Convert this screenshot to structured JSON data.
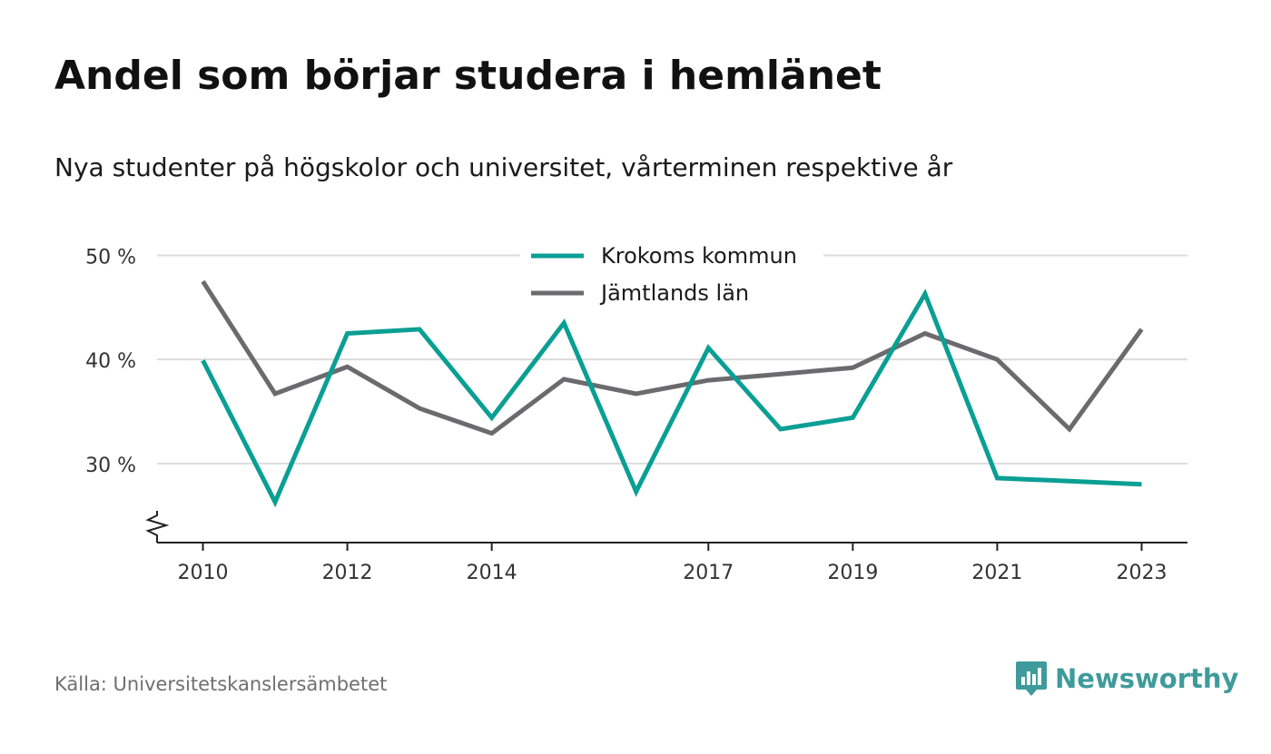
{
  "title": "Andel som börjar studera i hemlänet",
  "subtitle": "Nya studenter på högskolor och universitet, vårterminen respektive år",
  "source": "Källa: Universitetskanslersämbetet",
  "brand": {
    "name": "Newsworthy",
    "color": "#3f9b9b",
    "icon": "newsworthy-logo-icon"
  },
  "chart_data": {
    "type": "line",
    "x": [
      2010,
      2011,
      2012,
      2013,
      2014,
      2015,
      2016,
      2017,
      2018,
      2019,
      2020,
      2021,
      2022,
      2023
    ],
    "x_ticks": [
      "2010",
      "2012",
      "2014",
      "2017",
      "2019",
      "2021",
      "2023"
    ],
    "y_ticks": [
      "30 %",
      "40 %",
      "50 %"
    ],
    "ylim": [
      22.4,
      51
    ],
    "grid": true,
    "legend_position": "top-center",
    "axis_break": true,
    "series": [
      {
        "name": "Krokoms kommun",
        "color": "#0a9f94",
        "values": [
          39.9,
          26.3,
          42.5,
          42.9,
          34.4,
          43.5,
          27.3,
          41.1,
          33.3,
          34.4,
          46.3,
          28.6,
          28.3,
          28.0
        ]
      },
      {
        "name": "Jämtlands län",
        "color": "#6b6b6e",
        "values": [
          47.5,
          36.7,
          39.3,
          35.3,
          32.9,
          38.1,
          36.7,
          38.0,
          38.6,
          39.2,
          42.5,
          40.0,
          33.3,
          42.9
        ]
      }
    ]
  }
}
